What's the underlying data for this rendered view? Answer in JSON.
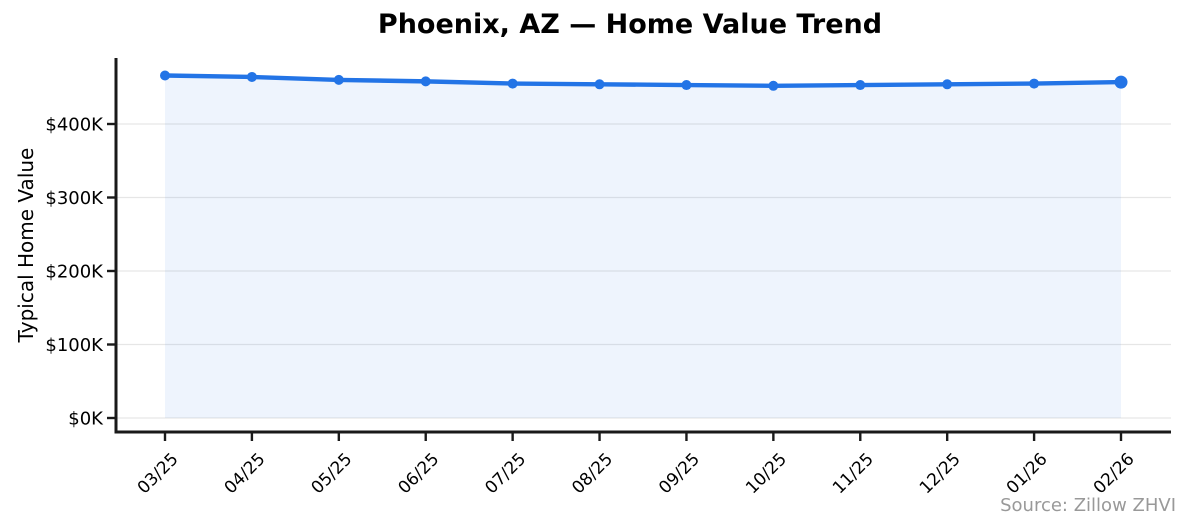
{
  "chart_data": {
    "type": "line",
    "title": "Phoenix, AZ — Home Value Trend",
    "ylabel": "Typical Home Value",
    "xlabel": "",
    "source_note": "Source: Zillow ZHVI",
    "categories": [
      "03/25",
      "04/25",
      "05/25",
      "06/25",
      "07/25",
      "08/25",
      "09/25",
      "10/25",
      "11/25",
      "12/25",
      "01/26",
      "02/26"
    ],
    "series": [
      {
        "name": "Typical Home Value",
        "unit": "USD thousands",
        "values": [
          466,
          464,
          460,
          458,
          455,
          454,
          453,
          452,
          453,
          454,
          455,
          457
        ]
      }
    ],
    "y_ticks": [
      {
        "label": "$0K",
        "value": 0
      },
      {
        "label": "$100K",
        "value": 100
      },
      {
        "label": "$200K",
        "value": 200
      },
      {
        "label": "$300K",
        "value": 300
      },
      {
        "label": "$400K",
        "value": 400
      }
    ],
    "ylim": [
      -19,
      490
    ],
    "grid": "horizontal",
    "legend": "none",
    "marker": "circle",
    "style": {
      "line_color": "#2374e6",
      "marker_color": "#2374e6",
      "fill_color": "rgba(35, 116, 230, 0.08)",
      "grid_color": "#e6e6e6",
      "axis_color": "#1a1a1a",
      "text_color": "#000000",
      "source_color": "#999999",
      "background": "#ffffff"
    }
  }
}
